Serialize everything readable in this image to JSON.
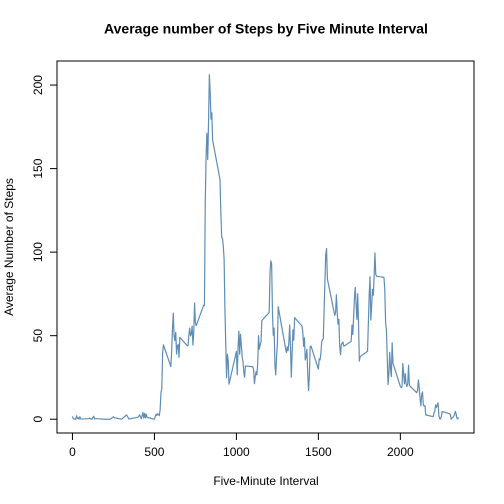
{
  "chart_data": {
    "type": "line",
    "title": "Average number of Steps by Five Minute Interval",
    "xlabel": "Five-Minute Interval",
    "ylabel": "Average Number of Steps",
    "color": "#5f8db5",
    "xlim": [
      -94.2,
      2449.2
    ],
    "ylim": [
      -8.25,
      214.4
    ],
    "xticks": [
      0,
      500,
      1000,
      1500,
      2000
    ],
    "yticks": [
      0,
      50,
      100,
      150,
      200
    ],
    "x": [
      0,
      5,
      10,
      15,
      20,
      25,
      30,
      35,
      40,
      45,
      50,
      55,
      100,
      105,
      110,
      115,
      120,
      125,
      130,
      135,
      140,
      145,
      150,
      200,
      230,
      250,
      255,
      300,
      330,
      345,
      400,
      410,
      420,
      430,
      435,
      440,
      445,
      450,
      455,
      500,
      505,
      510,
      515,
      520,
      525,
      530,
      535,
      540,
      545,
      550,
      555,
      600,
      605,
      610,
      615,
      620,
      625,
      630,
      635,
      640,
      645,
      650,
      655,
      700,
      705,
      710,
      715,
      720,
      725,
      730,
      735,
      740,
      745,
      750,
      755,
      800,
      805,
      810,
      815,
      820,
      825,
      830,
      835,
      840,
      845,
      850,
      855,
      900,
      905,
      910,
      915,
      920,
      925,
      930,
      935,
      940,
      945,
      950,
      955,
      1000,
      1005,
      1010,
      1015,
      1020,
      1025,
      1030,
      1035,
      1040,
      1045,
      1050,
      1055,
      1100,
      1105,
      1110,
      1115,
      1120,
      1125,
      1130,
      1135,
      1140,
      1145,
      1150,
      1155,
      1200,
      1205,
      1210,
      1215,
      1220,
      1225,
      1230,
      1235,
      1240,
      1245,
      1250,
      1255,
      1300,
      1305,
      1310,
      1315,
      1320,
      1325,
      1330,
      1335,
      1340,
      1345,
      1350,
      1355,
      1400,
      1405,
      1410,
      1415,
      1420,
      1425,
      1430,
      1435,
      1440,
      1445,
      1450,
      1455,
      1500,
      1505,
      1510,
      1515,
      1520,
      1525,
      1530,
      1535,
      1540,
      1545,
      1550,
      1555,
      1600,
      1605,
      1610,
      1615,
      1620,
      1625,
      1630,
      1635,
      1640,
      1645,
      1650,
      1655,
      1700,
      1705,
      1710,
      1715,
      1720,
      1725,
      1730,
      1735,
      1740,
      1745,
      1750,
      1755,
      1800,
      1805,
      1810,
      1815,
      1820,
      1825,
      1830,
      1835,
      1840,
      1845,
      1850,
      1855,
      1900,
      1905,
      1910,
      1915,
      1920,
      1925,
      1930,
      1935,
      1940,
      1945,
      1950,
      1955,
      2000,
      2005,
      2010,
      2015,
      2020,
      2025,
      2030,
      2035,
      2040,
      2045,
      2050,
      2055,
      2100,
      2105,
      2110,
      2115,
      2120,
      2125,
      2130,
      2135,
      2140,
      2145,
      2150,
      2155,
      2200,
      2205,
      2210,
      2215,
      2220,
      2225,
      2230,
      2235,
      2240,
      2245,
      2250,
      2255,
      2300,
      2305,
      2310,
      2315,
      2320,
      2325,
      2330,
      2335,
      2340,
      2345,
      2350,
      2355
    ],
    "values": [
      1.7,
      0.3,
      0.1,
      0.2,
      0,
      2.1,
      0.5,
      0.9,
      0,
      1.5,
      0.3,
      0.1,
      0.3,
      0.7,
      0.2,
      0.3,
      0,
      1.1,
      1.8,
      0.2,
      0.2,
      0.4,
      0.3,
      0,
      0,
      1.5,
      0.9,
      0,
      2.6,
      0.1,
      1.2,
      2.6,
      0.3,
      4.1,
      0.7,
      3.5,
      0.8,
      3.1,
      1.1,
      0,
      1.6,
      3,
      2.2,
      3.3,
      3,
      2.1,
      6,
      16,
      18.3,
      39.5,
      44.5,
      31.5,
      40,
      53.8,
      63.5,
      50,
      47,
      52,
      39,
      44,
      44.7,
      37,
      49,
      44,
      44,
      50.5,
      54.5,
      49.9,
      50.9,
      55.7,
      44.3,
      52.3,
      69.5,
      57.8,
      56,
      68.2,
      68,
      129.4,
      157.5,
      171.2,
      155.4,
      177.3,
      206.2,
      195.9,
      179.6,
      183.4,
      167,
      143.5,
      124,
      109.1,
      108.1,
      103.7,
      95.9,
      66.2,
      45.2,
      24.8,
      38.8,
      35,
      21,
      40.6,
      26.5,
      42.4,
      52.7,
      38.9,
      50.8,
      44.3,
      37.4,
      34.7,
      28.3,
      25.1,
      31.9,
      31.4,
      29.7,
      21.3,
      25.5,
      28.4,
      26.5,
      33.4,
      49.98,
      42,
      44.6,
      46,
      59,
      63.9,
      87.7,
      94.8,
      92.8,
      63.4,
      50.2,
      54.5,
      32.4,
      26.5,
      37.7,
      45.1,
      67.3,
      42.3,
      39.9,
      43.3,
      40.98,
      46.2,
      56.4,
      42.8,
      25.1,
      39.97,
      53.5,
      47.3,
      60.8,
      55.8,
      51.96,
      43.6,
      48.7,
      35.5,
      37.5,
      41.8,
      27.5,
      17.1,
      26.1,
      43.6,
      43.8,
      30,
      36.1,
      35.5,
      38.8,
      45.96,
      47.75,
      48.1,
      65.3,
      82.9,
      98.7,
      102.1,
      83.96,
      62.1,
      64.1,
      74.5,
      63.2,
      56.9,
      59.8,
      43.9,
      38.6,
      44.7,
      45.5,
      46.2,
      43.7,
      46.6,
      56.3,
      50.7,
      61.2,
      72.7,
      78.9,
      68.9,
      59.7,
      75.1,
      56.5,
      34.8,
      37.5,
      40.7,
      58,
      74.7,
      85.3,
      59.3,
      67.8,
      77.7,
      74.2,
      85.3,
      99.5,
      86.6,
      85.6,
      84.9,
      77.8,
      58,
      53.4,
      36.3,
      20.7,
      27.4,
      40,
      30.2,
      25.5,
      45.7,
      33.5,
      19.6,
      19,
      19.3,
      33.3,
      26.8,
      21.2,
      27.3,
      21.3,
      19.5,
      21.3,
      32.3,
      20.2,
      15.9,
      17.2,
      23.5,
      19.2,
      12.5,
      8,
      14.7,
      16.3,
      8.7,
      7.8,
      8.1,
      2.6,
      1.5,
      3.7,
      4.8,
      8.5,
      7.1,
      8.7,
      9.75,
      2.2,
      0.3,
      0.1,
      1.6,
      4.6,
      3.3,
      2.8,
      0,
      0.8,
      1,
      1.6,
      2.6,
      4.7,
      3.3,
      0.6,
      0.2,
      1.1
    ]
  }
}
